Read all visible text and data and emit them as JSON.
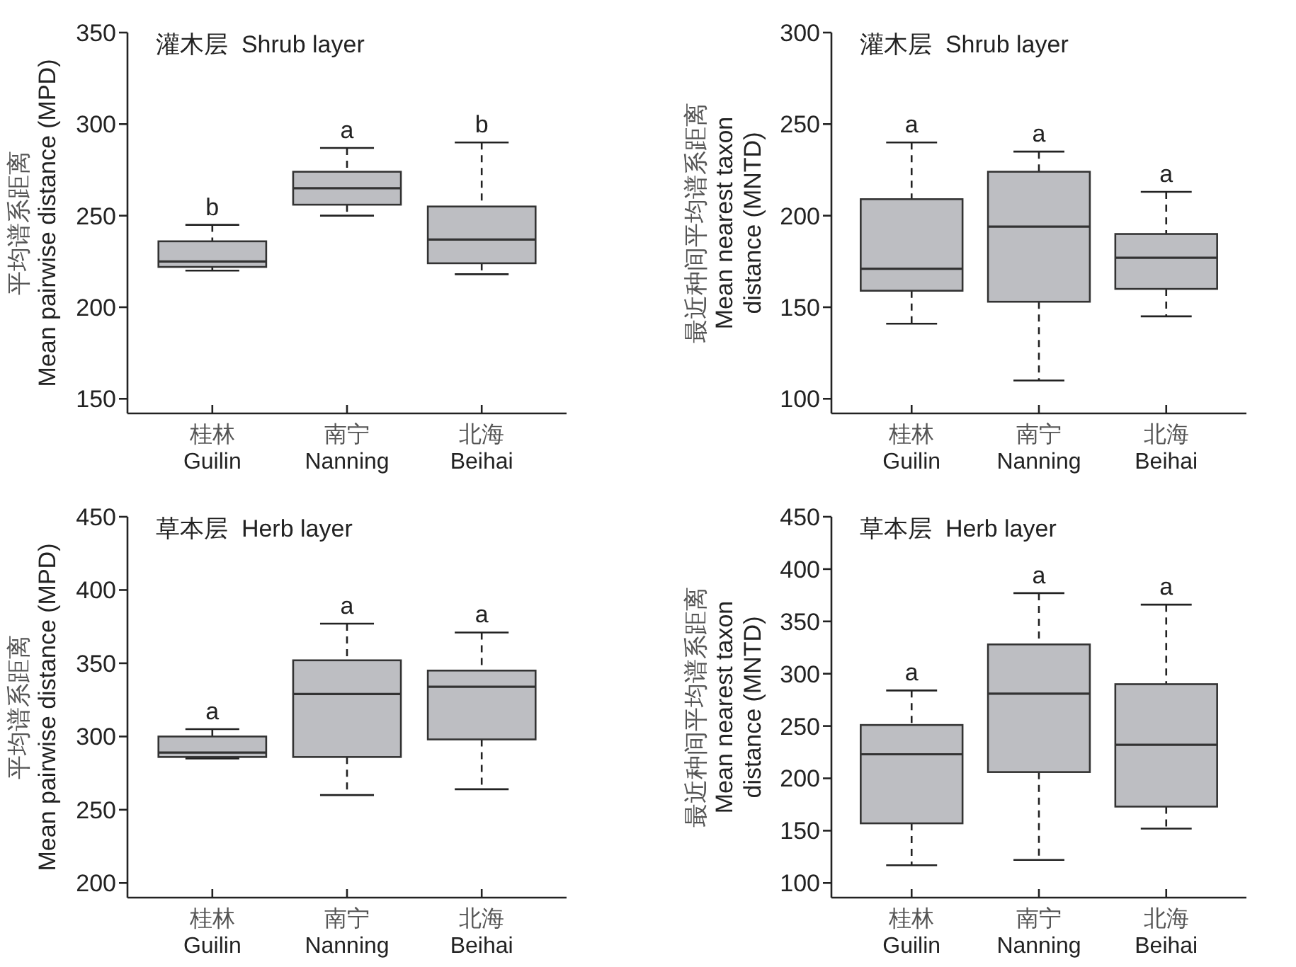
{
  "chart_data": [
    {
      "type": "box",
      "title": "灌木层  Shrub layer",
      "ylabel": "平均谱系距离\nMean pairwise distance (MPD)",
      "categories": [
        "桂林\nGuilin",
        "南宁\nNanning",
        "北海\nBeihai"
      ],
      "ylim": [
        142,
        350
      ],
      "yticks": [
        150,
        200,
        250,
        300,
        350
      ],
      "grid": false,
      "series": [
        {
          "color": "#bdbec2",
          "boxes": [
            {
              "low": 220,
              "q1": 222,
              "median": 225,
              "q3": 236,
              "high": 245
            },
            {
              "low": 250,
              "q1": 256,
              "median": 265,
              "q3": 274,
              "high": 287
            },
            {
              "low": 218,
              "q1": 224,
              "median": 237,
              "q3": 255,
              "high": 290
            }
          ]
        }
      ],
      "annotations": [
        {
          "text": "b",
          "x": "桂林\nGuilin",
          "y": 245
        },
        {
          "text": "a",
          "x": "南宁\nNanning",
          "y": 287
        },
        {
          "text": "b",
          "x": "北海\nBeihai",
          "y": 290
        }
      ]
    },
    {
      "type": "box",
      "title": "灌木层  Shrub layer",
      "ylabel": "最近种间平均谱系距离\nMean nearest taxon\ndistance (MNTD)",
      "categories": [
        "桂林\nGuilin",
        "南宁\nNanning",
        "北海\nBeihai"
      ],
      "ylim": [
        92,
        300
      ],
      "yticks": [
        100,
        150,
        200,
        250,
        300
      ],
      "grid": false,
      "series": [
        {
          "color": "#bdbec2",
          "boxes": [
            {
              "low": 141,
              "q1": 159,
              "median": 171,
              "q3": 209,
              "high": 240
            },
            {
              "low": 110,
              "q1": 153,
              "median": 194,
              "q3": 224,
              "high": 235
            },
            {
              "low": 145,
              "q1": 160,
              "median": 177,
              "q3": 190,
              "high": 213
            }
          ]
        }
      ],
      "annotations": [
        {
          "text": "a",
          "x": "桂林\nGuilin",
          "y": 240
        },
        {
          "text": "a",
          "x": "南宁\nNanning",
          "y": 235
        },
        {
          "text": "a",
          "x": "北海\nBeihai",
          "y": 213
        }
      ]
    },
    {
      "type": "box",
      "title": "草本层  Herb layer",
      "ylabel": "平均谱系距离\nMean pairwise distance (MPD)",
      "categories": [
        "桂林\nGuilin",
        "南宁\nNanning",
        "北海\nBeihai"
      ],
      "ylim": [
        190,
        450
      ],
      "yticks": [
        200,
        250,
        300,
        350,
        400,
        450
      ],
      "grid": false,
      "series": [
        {
          "color": "#bdbec2",
          "boxes": [
            {
              "low": 285,
              "q1": 286,
              "median": 289,
              "q3": 300,
              "high": 305
            },
            {
              "low": 260,
              "q1": 286,
              "median": 329,
              "q3": 352,
              "high": 377
            },
            {
              "low": 264,
              "q1": 298,
              "median": 334,
              "q3": 345,
              "high": 371
            }
          ]
        }
      ],
      "annotations": [
        {
          "text": "a",
          "x": "桂林\nGuilin",
          "y": 305
        },
        {
          "text": "a",
          "x": "南宁\nNanning",
          "y": 377
        },
        {
          "text": "a",
          "x": "北海\nBeihai",
          "y": 371
        }
      ]
    },
    {
      "type": "box",
      "title": "草本层  Herb layer",
      "ylabel": "最近种间平均谱系距离\nMean nearest taxon\ndistance (MNTD)",
      "categories": [
        "桂林\nGuilin",
        "南宁\nNanning",
        "北海\nBeihai"
      ],
      "ylim": [
        86,
        450
      ],
      "yticks": [
        100,
        150,
        200,
        250,
        300,
        350,
        400,
        450
      ],
      "grid": false,
      "series": [
        {
          "color": "#bdbec2",
          "boxes": [
            {
              "low": 117,
              "q1": 157,
              "median": 223,
              "q3": 251,
              "high": 284
            },
            {
              "low": 122,
              "q1": 206,
              "median": 281,
              "q3": 328,
              "high": 377
            },
            {
              "low": 152,
              "q1": 173,
              "median": 232,
              "q3": 290,
              "high": 366
            }
          ]
        }
      ],
      "annotations": [
        {
          "text": "a",
          "x": "桂林\nGuilin",
          "y": 284
        },
        {
          "text": "a",
          "x": "南宁\nNanning",
          "y": 377
        },
        {
          "text": "a",
          "x": "北海\nBeihai",
          "y": 366
        }
      ]
    }
  ]
}
